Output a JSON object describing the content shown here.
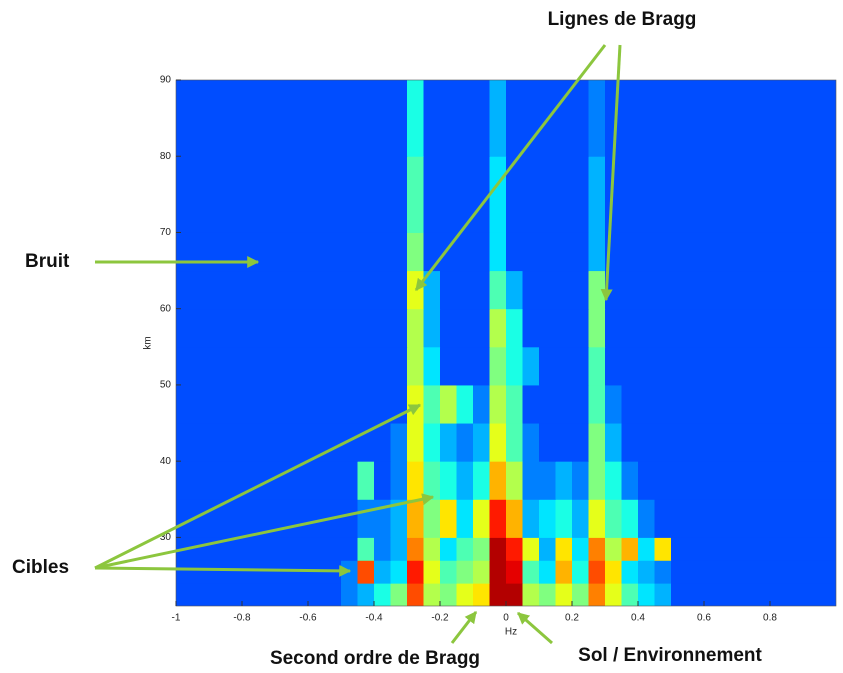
{
  "chart_data": {
    "type": "heatmap",
    "x_label": "Hz",
    "y_label": "km",
    "xlim": [
      -1,
      1
    ],
    "ylim": [
      21,
      90
    ],
    "xticks": [
      -1,
      -0.8,
      -0.6,
      -0.4,
      -0.2,
      0,
      0.2,
      0.4,
      0.6,
      0.8
    ],
    "yticks": [
      30,
      40,
      50,
      60,
      70,
      80,
      90
    ],
    "colormap": "jet",
    "xbins": [
      -1,
      -0.95,
      -0.9,
      -0.85,
      -0.8,
      -0.75,
      -0.7,
      -0.65,
      -0.6,
      -0.55,
      -0.5,
      -0.45,
      -0.4,
      -0.35,
      -0.3,
      -0.25,
      -0.2,
      -0.15,
      -0.1,
      -0.05,
      0,
      0.05,
      0.1,
      0.15,
      0.2,
      0.25,
      0.3,
      0.35,
      0.4,
      0.45,
      0.5,
      0.55,
      0.6,
      0.65,
      0.7,
      0.75,
      0.8,
      0.85,
      0.9,
      0.95,
      1
    ],
    "ybins": [
      21,
      24,
      27,
      30,
      35,
      40,
      45,
      50,
      55,
      60,
      65,
      70,
      80,
      90
    ],
    "z": [
      [
        0.2,
        0.2,
        0.2,
        0.2,
        0.2,
        0.2,
        0.2,
        0.2,
        0.2,
        0.2,
        0.25,
        0.3,
        0.4,
        0.5,
        0.8,
        0.55,
        0.5,
        0.6,
        0.65,
        0.95,
        0.95,
        0.55,
        0.5,
        0.6,
        0.5,
        0.75,
        0.6,
        0.45,
        0.35,
        0.3,
        0.2,
        0.2,
        0.2,
        0.2,
        0.2,
        0.2,
        0.2,
        0.2,
        0.2,
        0.2
      ],
      [
        0.2,
        0.2,
        0.2,
        0.2,
        0.2,
        0.2,
        0.2,
        0.2,
        0.2,
        0.2,
        0.25,
        0.8,
        0.3,
        0.35,
        0.85,
        0.6,
        0.45,
        0.5,
        0.55,
        0.95,
        0.9,
        0.45,
        0.35,
        0.7,
        0.4,
        0.8,
        0.65,
        0.35,
        0.3,
        0.25,
        0.2,
        0.2,
        0.2,
        0.2,
        0.2,
        0.2,
        0.2,
        0.2,
        0.2,
        0.2
      ],
      [
        0.2,
        0.2,
        0.2,
        0.2,
        0.2,
        0.2,
        0.2,
        0.2,
        0.2,
        0.2,
        0.2,
        0.45,
        0.25,
        0.3,
        0.75,
        0.55,
        0.35,
        0.45,
        0.5,
        0.95,
        0.85,
        0.6,
        0.3,
        0.65,
        0.35,
        0.75,
        0.55,
        0.7,
        0.35,
        0.65,
        0.2,
        0.2,
        0.2,
        0.2,
        0.2,
        0.2,
        0.2,
        0.2,
        0.2,
        0.2
      ],
      [
        0.2,
        0.2,
        0.2,
        0.2,
        0.2,
        0.2,
        0.2,
        0.2,
        0.2,
        0.2,
        0.2,
        0.25,
        0.25,
        0.3,
        0.7,
        0.5,
        0.65,
        0.35,
        0.6,
        0.85,
        0.7,
        0.3,
        0.35,
        0.4,
        0.3,
        0.6,
        0.45,
        0.4,
        0.25,
        0.2,
        0.2,
        0.2,
        0.2,
        0.2,
        0.2,
        0.2,
        0.2,
        0.2,
        0.2,
        0.2
      ],
      [
        0.2,
        0.2,
        0.2,
        0.2,
        0.2,
        0.2,
        0.2,
        0.2,
        0.2,
        0.2,
        0.2,
        0.45,
        0.2,
        0.25,
        0.65,
        0.45,
        0.4,
        0.3,
        0.4,
        0.7,
        0.55,
        0.25,
        0.25,
        0.3,
        0.25,
        0.5,
        0.4,
        0.25,
        0.2,
        0.2,
        0.2,
        0.2,
        0.2,
        0.2,
        0.2,
        0.2,
        0.2,
        0.2,
        0.2,
        0.2
      ],
      [
        0.2,
        0.2,
        0.2,
        0.2,
        0.2,
        0.2,
        0.2,
        0.2,
        0.2,
        0.2,
        0.2,
        0.2,
        0.2,
        0.25,
        0.6,
        0.4,
        0.3,
        0.25,
        0.3,
        0.6,
        0.45,
        0.25,
        0.2,
        0.2,
        0.2,
        0.5,
        0.3,
        0.2,
        0.2,
        0.2,
        0.2,
        0.2,
        0.2,
        0.2,
        0.2,
        0.2,
        0.2,
        0.2,
        0.2,
        0.2
      ],
      [
        0.2,
        0.2,
        0.2,
        0.2,
        0.2,
        0.2,
        0.2,
        0.2,
        0.2,
        0.2,
        0.2,
        0.2,
        0.2,
        0.2,
        0.6,
        0.45,
        0.55,
        0.4,
        0.25,
        0.55,
        0.45,
        0.2,
        0.2,
        0.2,
        0.2,
        0.45,
        0.25,
        0.2,
        0.2,
        0.2,
        0.2,
        0.2,
        0.2,
        0.2,
        0.2,
        0.2,
        0.2,
        0.2,
        0.2,
        0.2
      ],
      [
        0.2,
        0.2,
        0.2,
        0.2,
        0.2,
        0.2,
        0.2,
        0.2,
        0.2,
        0.2,
        0.2,
        0.2,
        0.2,
        0.2,
        0.55,
        0.35,
        0.2,
        0.2,
        0.2,
        0.5,
        0.4,
        0.3,
        0.2,
        0.2,
        0.2,
        0.45,
        0.2,
        0.2,
        0.2,
        0.2,
        0.2,
        0.2,
        0.2,
        0.2,
        0.2,
        0.2,
        0.2,
        0.2,
        0.2,
        0.2
      ],
      [
        0.2,
        0.2,
        0.2,
        0.2,
        0.2,
        0.2,
        0.2,
        0.2,
        0.2,
        0.2,
        0.2,
        0.2,
        0.2,
        0.2,
        0.55,
        0.3,
        0.2,
        0.2,
        0.2,
        0.55,
        0.4,
        0.2,
        0.2,
        0.2,
        0.2,
        0.5,
        0.2,
        0.2,
        0.2,
        0.2,
        0.2,
        0.2,
        0.2,
        0.2,
        0.2,
        0.2,
        0.2,
        0.2,
        0.2,
        0.2
      ],
      [
        0.2,
        0.2,
        0.2,
        0.2,
        0.2,
        0.2,
        0.2,
        0.2,
        0.2,
        0.2,
        0.2,
        0.2,
        0.2,
        0.2,
        0.6,
        0.3,
        0.2,
        0.2,
        0.2,
        0.45,
        0.3,
        0.2,
        0.2,
        0.2,
        0.2,
        0.5,
        0.2,
        0.2,
        0.2,
        0.2,
        0.2,
        0.2,
        0.2,
        0.2,
        0.2,
        0.2,
        0.2,
        0.2,
        0.2,
        0.2
      ],
      [
        0.2,
        0.2,
        0.2,
        0.2,
        0.2,
        0.2,
        0.2,
        0.2,
        0.2,
        0.2,
        0.2,
        0.2,
        0.2,
        0.2,
        0.5,
        0.2,
        0.2,
        0.2,
        0.2,
        0.35,
        0.2,
        0.2,
        0.2,
        0.2,
        0.2,
        0.3,
        0.2,
        0.2,
        0.2,
        0.2,
        0.2,
        0.2,
        0.2,
        0.2,
        0.2,
        0.2,
        0.2,
        0.2,
        0.2,
        0.2
      ],
      [
        0.2,
        0.2,
        0.2,
        0.2,
        0.2,
        0.2,
        0.2,
        0.2,
        0.2,
        0.2,
        0.2,
        0.2,
        0.2,
        0.2,
        0.45,
        0.2,
        0.2,
        0.2,
        0.2,
        0.35,
        0.2,
        0.2,
        0.2,
        0.2,
        0.2,
        0.3,
        0.2,
        0.2,
        0.2,
        0.2,
        0.2,
        0.2,
        0.2,
        0.2,
        0.2,
        0.2,
        0.2,
        0.2,
        0.2,
        0.2
      ],
      [
        0.2,
        0.2,
        0.2,
        0.2,
        0.2,
        0.2,
        0.2,
        0.2,
        0.2,
        0.2,
        0.2,
        0.2,
        0.2,
        0.2,
        0.4,
        0.2,
        0.2,
        0.2,
        0.2,
        0.3,
        0.2,
        0.2,
        0.2,
        0.2,
        0.2,
        0.25,
        0.2,
        0.2,
        0.2,
        0.2,
        0.2,
        0.2,
        0.2,
        0.2,
        0.2,
        0.2,
        0.2,
        0.2,
        0.2,
        0.2
      ]
    ],
    "annotations": [
      "Lignes de Bragg",
      "Bruit",
      "Cibles",
      "Second ordre de Bragg",
      "Sol / Environnement"
    ]
  }
}
